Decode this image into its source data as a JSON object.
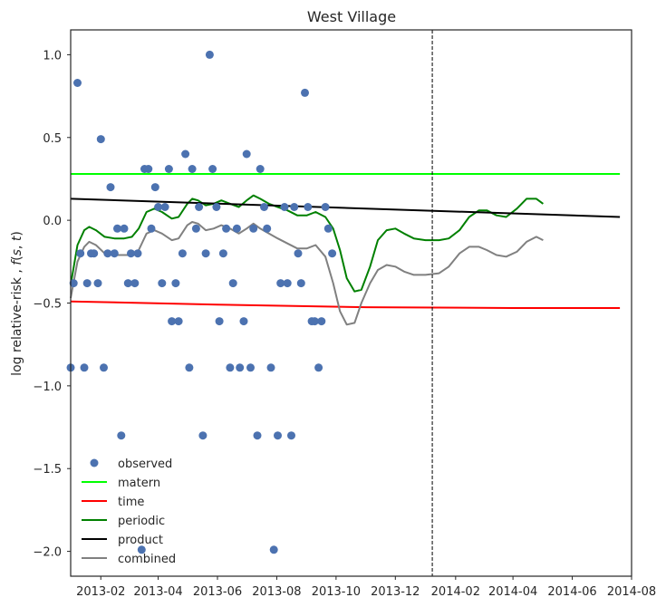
{
  "chart_data": {
    "type": "scatter",
    "title": "West Village",
    "ylabel": "log relative-risk , f(s, t)",
    "xlabel": "",
    "x_type": "date",
    "xlim": [
      "2013-01-01",
      "2014-08-01"
    ],
    "ylim": [
      -2.15,
      1.15
    ],
    "y_ticks": [
      1.0,
      0.5,
      0.0,
      -0.5,
      -1.0,
      -1.5,
      -2.0
    ],
    "y_tick_labels": [
      "1.0",
      "0.5",
      "0.0",
      "−0.5",
      "−1.0",
      "−1.5",
      "−2.0"
    ],
    "x_ticks": [
      "2013-02-01",
      "2013-04-01",
      "2013-06-01",
      "2013-08-01",
      "2013-10-01",
      "2013-12-01",
      "2014-02-01",
      "2014-04-01",
      "2014-06-01",
      "2014-08-01"
    ],
    "x_tick_labels": [
      "2013-02",
      "2013-04",
      "2013-06",
      "2013-08",
      "2013-10",
      "2013-12",
      "2014-02",
      "2014-04",
      "2014-06",
      "2014-08"
    ],
    "vline": "2014-01-08",
    "grid": false,
    "legend_position": "lower-left",
    "observed": {
      "name": "observed",
      "color": "#4c72b0",
      "points": [
        [
          "2013-01-01",
          -0.89
        ],
        [
          "2013-01-04",
          -0.38
        ],
        [
          "2013-01-08",
          0.83
        ],
        [
          "2013-01-11",
          -0.2
        ],
        [
          "2013-01-15",
          -0.89
        ],
        [
          "2013-01-18",
          -0.38
        ],
        [
          "2013-01-22",
          -0.2
        ],
        [
          "2013-01-25",
          -0.2
        ],
        [
          "2013-01-29",
          -0.38
        ],
        [
          "2013-02-01",
          0.49
        ],
        [
          "2013-02-04",
          -0.89
        ],
        [
          "2013-02-08",
          -0.2
        ],
        [
          "2013-02-11",
          0.2
        ],
        [
          "2013-02-15",
          -0.2
        ],
        [
          "2013-02-18",
          -0.05
        ],
        [
          "2013-02-22",
          -1.3
        ],
        [
          "2013-02-25",
          -0.05
        ],
        [
          "2013-03-01",
          -0.38
        ],
        [
          "2013-03-04",
          -0.2
        ],
        [
          "2013-03-08",
          -0.38
        ],
        [
          "2013-03-11",
          -0.2
        ],
        [
          "2013-03-15",
          -1.99
        ],
        [
          "2013-03-18",
          0.31
        ],
        [
          "2013-03-22",
          0.31
        ],
        [
          "2013-03-25",
          -0.05
        ],
        [
          "2013-03-29",
          0.2
        ],
        [
          "2013-04-01",
          0.08
        ],
        [
          "2013-04-05",
          -0.38
        ],
        [
          "2013-04-08",
          0.08
        ],
        [
          "2013-04-12",
          0.31
        ],
        [
          "2013-04-15",
          -0.61
        ],
        [
          "2013-04-19",
          -0.38
        ],
        [
          "2013-04-22",
          -0.61
        ],
        [
          "2013-04-26",
          -0.2
        ],
        [
          "2013-04-29",
          0.4
        ],
        [
          "2013-05-03",
          -0.89
        ],
        [
          "2013-05-06",
          0.31
        ],
        [
          "2013-05-10",
          -0.05
        ],
        [
          "2013-05-13",
          0.08
        ],
        [
          "2013-05-17",
          -1.3
        ],
        [
          "2013-05-20",
          -0.2
        ],
        [
          "2013-05-24",
          1.0
        ],
        [
          "2013-05-27",
          0.31
        ],
        [
          "2013-05-31",
          0.08
        ],
        [
          "2013-06-03",
          -0.61
        ],
        [
          "2013-06-07",
          -0.2
        ],
        [
          "2013-06-10",
          -0.05
        ],
        [
          "2013-06-14",
          -0.89
        ],
        [
          "2013-06-17",
          -0.38
        ],
        [
          "2013-06-21",
          -0.05
        ],
        [
          "2013-06-24",
          -0.89
        ],
        [
          "2013-06-28",
          -0.61
        ],
        [
          "2013-07-01",
          0.4
        ],
        [
          "2013-07-05",
          -0.89
        ],
        [
          "2013-07-08",
          -0.05
        ],
        [
          "2013-07-12",
          -1.3
        ],
        [
          "2013-07-15",
          0.31
        ],
        [
          "2013-07-19",
          0.08
        ],
        [
          "2013-07-22",
          -0.05
        ],
        [
          "2013-07-26",
          -0.89
        ],
        [
          "2013-07-29",
          -1.99
        ],
        [
          "2013-08-02",
          -1.3
        ],
        [
          "2013-08-05",
          -0.38
        ],
        [
          "2013-08-09",
          0.08
        ],
        [
          "2013-08-12",
          -0.38
        ],
        [
          "2013-08-16",
          -1.3
        ],
        [
          "2013-08-19",
          0.08
        ],
        [
          "2013-08-23",
          -0.2
        ],
        [
          "2013-08-26",
          -0.38
        ],
        [
          "2013-08-30",
          0.77
        ],
        [
          "2013-09-02",
          0.08
        ],
        [
          "2013-09-06",
          -0.61
        ],
        [
          "2013-09-09",
          -0.61
        ],
        [
          "2013-09-13",
          -0.89
        ],
        [
          "2013-09-16",
          -0.61
        ],
        [
          "2013-09-20",
          0.08
        ],
        [
          "2013-09-23",
          -0.05
        ],
        [
          "2013-09-27",
          -0.2
        ]
      ]
    },
    "series": [
      {
        "name": "matern",
        "color": "#00ff00",
        "points": [
          [
            "2013-01-01",
            0.28
          ],
          [
            "2014-07-20",
            0.28
          ]
        ]
      },
      {
        "name": "time",
        "color": "#ff0000",
        "points": [
          [
            "2013-01-01",
            -0.49
          ],
          [
            "2013-06-01",
            -0.51
          ],
          [
            "2013-11-01",
            -0.525
          ],
          [
            "2014-04-01",
            -0.53
          ],
          [
            "2014-07-20",
            -0.53
          ]
        ]
      },
      {
        "name": "periodic",
        "color": "#008000",
        "points": [
          [
            "2013-01-01",
            -0.39
          ],
          [
            "2013-01-08",
            -0.15
          ],
          [
            "2013-01-15",
            -0.06
          ],
          [
            "2013-01-20",
            -0.04
          ],
          [
            "2013-01-27",
            -0.06
          ],
          [
            "2013-02-05",
            -0.1
          ],
          [
            "2013-02-15",
            -0.11
          ],
          [
            "2013-02-25",
            -0.11
          ],
          [
            "2013-03-05",
            -0.1
          ],
          [
            "2013-03-12",
            -0.05
          ],
          [
            "2013-03-20",
            0.05
          ],
          [
            "2013-03-28",
            0.07
          ],
          [
            "2013-04-05",
            0.05
          ],
          [
            "2013-04-15",
            0.01
          ],
          [
            "2013-04-22",
            0.02
          ],
          [
            "2013-05-01",
            0.1
          ],
          [
            "2013-05-06",
            0.13
          ],
          [
            "2013-05-12",
            0.12
          ],
          [
            "2013-05-20",
            0.09
          ],
          [
            "2013-05-28",
            0.1
          ],
          [
            "2013-06-05",
            0.12
          ],
          [
            "2013-06-14",
            0.1
          ],
          [
            "2013-06-23",
            0.08
          ],
          [
            "2013-07-01",
            0.12
          ],
          [
            "2013-07-08",
            0.15
          ],
          [
            "2013-07-15",
            0.13
          ],
          [
            "2013-07-24",
            0.1
          ],
          [
            "2013-08-02",
            0.08
          ],
          [
            "2013-08-12",
            0.06
          ],
          [
            "2013-08-22",
            0.03
          ],
          [
            "2013-09-01",
            0.03
          ],
          [
            "2013-09-10",
            0.05
          ],
          [
            "2013-09-20",
            0.02
          ],
          [
            "2013-09-28",
            -0.05
          ],
          [
            "2013-10-05",
            -0.18
          ],
          [
            "2013-10-12",
            -0.35
          ],
          [
            "2013-10-20",
            -0.43
          ],
          [
            "2013-10-27",
            -0.42
          ],
          [
            "2013-11-05",
            -0.28
          ],
          [
            "2013-11-13",
            -0.12
          ],
          [
            "2013-11-22",
            -0.06
          ],
          [
            "2013-12-01",
            -0.05
          ],
          [
            "2013-12-10",
            -0.08
          ],
          [
            "2013-12-20",
            -0.11
          ],
          [
            "2014-01-01",
            -0.12
          ],
          [
            "2014-01-15",
            -0.12
          ],
          [
            "2014-01-25",
            -0.11
          ],
          [
            "2014-02-05",
            -0.06
          ],
          [
            "2014-02-15",
            0.02
          ],
          [
            "2014-02-25",
            0.06
          ],
          [
            "2014-03-05",
            0.06
          ],
          [
            "2014-03-15",
            0.03
          ],
          [
            "2014-03-25",
            0.02
          ],
          [
            "2014-04-05",
            0.07
          ],
          [
            "2014-04-15",
            0.13
          ],
          [
            "2014-04-25",
            0.13
          ],
          [
            "2014-05-02",
            0.1
          ]
        ]
      },
      {
        "name": "product",
        "color": "#000000",
        "points": [
          [
            "2013-01-01",
            0.13
          ],
          [
            "2014-07-20",
            0.02
          ]
        ]
      },
      {
        "name": "combined",
        "color": "#808080",
        "points": [
          [
            "2013-01-01",
            -0.47
          ],
          [
            "2013-01-08",
            -0.25
          ],
          [
            "2013-01-15",
            -0.16
          ],
          [
            "2013-01-20",
            -0.13
          ],
          [
            "2013-01-27",
            -0.15
          ],
          [
            "2013-02-05",
            -0.2
          ],
          [
            "2013-02-15",
            -0.21
          ],
          [
            "2013-02-25",
            -0.21
          ],
          [
            "2013-03-05",
            -0.21
          ],
          [
            "2013-03-12",
            -0.18
          ],
          [
            "2013-03-20",
            -0.08
          ],
          [
            "2013-03-28",
            -0.06
          ],
          [
            "2013-04-05",
            -0.08
          ],
          [
            "2013-04-15",
            -0.12
          ],
          [
            "2013-04-22",
            -0.11
          ],
          [
            "2013-05-01",
            -0.03
          ],
          [
            "2013-05-06",
            -0.01
          ],
          [
            "2013-05-12",
            -0.02
          ],
          [
            "2013-05-20",
            -0.06
          ],
          [
            "2013-05-28",
            -0.05
          ],
          [
            "2013-06-05",
            -0.03
          ],
          [
            "2013-06-14",
            -0.05
          ],
          [
            "2013-06-23",
            -0.08
          ],
          [
            "2013-07-01",
            -0.05
          ],
          [
            "2013-07-08",
            -0.02
          ],
          [
            "2013-07-15",
            -0.05
          ],
          [
            "2013-07-24",
            -0.08
          ],
          [
            "2013-08-02",
            -0.11
          ],
          [
            "2013-08-12",
            -0.14
          ],
          [
            "2013-08-22",
            -0.17
          ],
          [
            "2013-09-01",
            -0.17
          ],
          [
            "2013-09-10",
            -0.15
          ],
          [
            "2013-09-20",
            -0.22
          ],
          [
            "2013-09-28",
            -0.38
          ],
          [
            "2013-10-05",
            -0.55
          ],
          [
            "2013-10-12",
            -0.63
          ],
          [
            "2013-10-20",
            -0.62
          ],
          [
            "2013-10-27",
            -0.5
          ],
          [
            "2013-11-05",
            -0.38
          ],
          [
            "2013-11-13",
            -0.3
          ],
          [
            "2013-11-22",
            -0.27
          ],
          [
            "2013-12-01",
            -0.28
          ],
          [
            "2013-12-10",
            -0.31
          ],
          [
            "2013-12-20",
            -0.33
          ],
          [
            "2014-01-01",
            -0.33
          ],
          [
            "2014-01-15",
            -0.32
          ],
          [
            "2014-01-25",
            -0.28
          ],
          [
            "2014-02-05",
            -0.2
          ],
          [
            "2014-02-15",
            -0.16
          ],
          [
            "2014-02-25",
            -0.16
          ],
          [
            "2014-03-05",
            -0.18
          ],
          [
            "2014-03-15",
            -0.21
          ],
          [
            "2014-03-25",
            -0.22
          ],
          [
            "2014-04-05",
            -0.19
          ],
          [
            "2014-04-15",
            -0.13
          ],
          [
            "2014-04-25",
            -0.1
          ],
          [
            "2014-05-02",
            -0.12
          ]
        ]
      }
    ]
  }
}
